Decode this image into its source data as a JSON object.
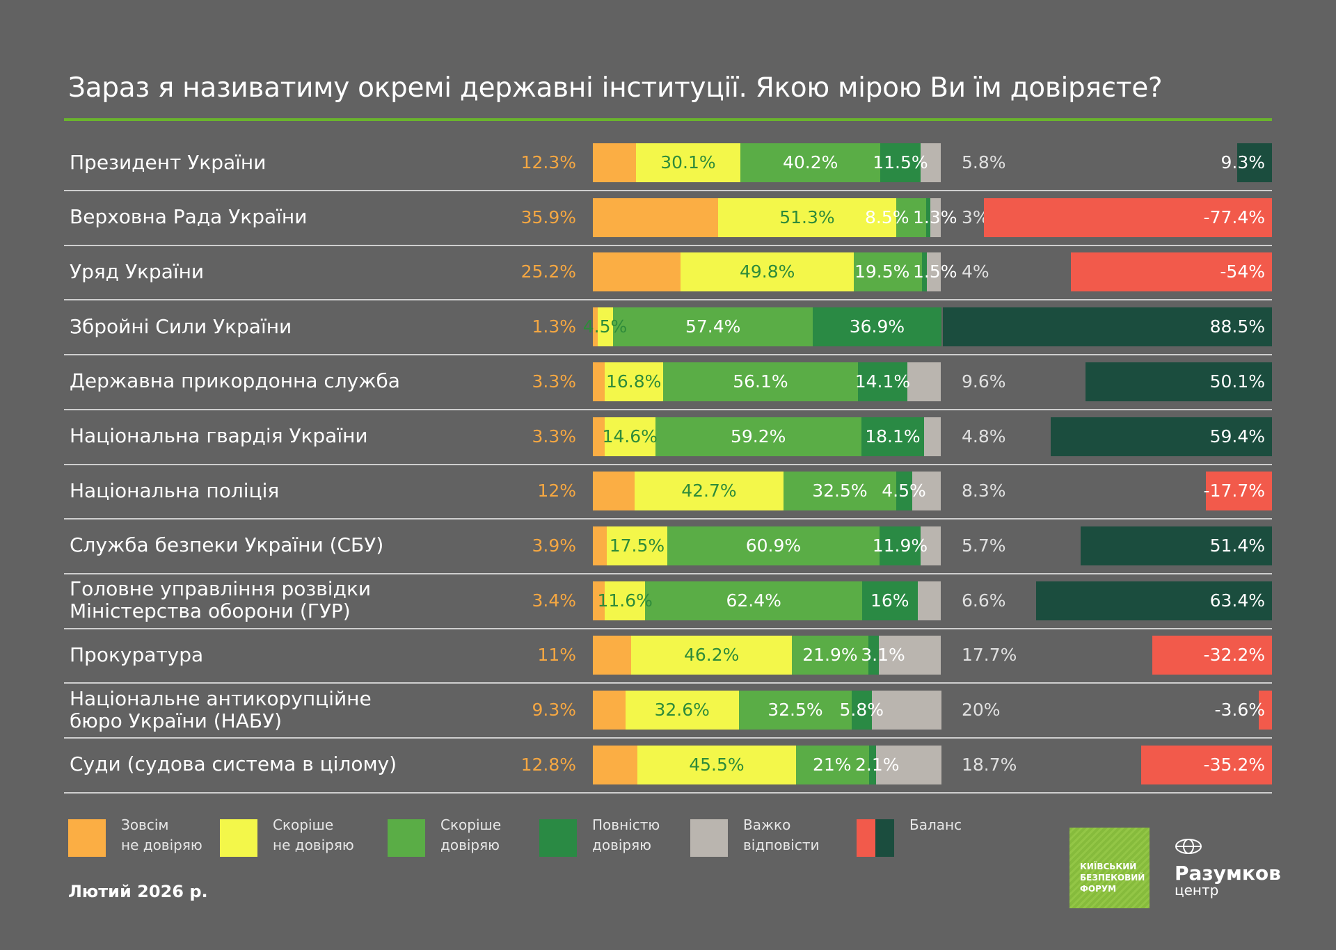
{
  "chart_data": {
    "type": "bar",
    "stacked": true,
    "title": "Зараз я називатиму окремі державні інституції. Якою мірою Ви їм довіряєте?",
    "legend": [
      "Зовсім\nне довіряю",
      "Скоріше\nне довіряю",
      "Скоріше\nдовіряю",
      "Повністю\nдовіряю",
      "Важко\nвідповісти",
      "Баланс"
    ],
    "colors": {
      "none": "#fbae44",
      "rather_not": "#f3f74a",
      "rather": "#5aad46",
      "full": "#2a8a44",
      "dk": "#bab5af",
      "balance_pos": "#1b4d3e",
      "balance_neg": "#f25a4b"
    },
    "rows": [
      {
        "label": "Президент України",
        "values": [
          12.3,
          30.1,
          40.2,
          11.5,
          5.8
        ],
        "balance": 9.3
      },
      {
        "label": "Верховна Рада України",
        "values": [
          35.9,
          51.3,
          8.5,
          1.3,
          3
        ],
        "balance": -77.4
      },
      {
        "label": "Уряд України",
        "values": [
          25.2,
          49.8,
          19.5,
          1.5,
          4
        ],
        "balance": -54
      },
      {
        "label": "Збройні Сили України",
        "values": [
          1.3,
          4.5,
          57.4,
          36.9,
          null
        ],
        "balance": 88.5
      },
      {
        "label": "Державна прикордонна служба",
        "values": [
          3.3,
          16.8,
          56.1,
          14.1,
          9.6
        ],
        "balance": 50.1
      },
      {
        "label": "Національна гвардія України",
        "values": [
          3.3,
          14.6,
          59.2,
          18.1,
          4.8
        ],
        "balance": 59.4
      },
      {
        "label": "Національна поліція",
        "values": [
          12,
          42.7,
          32.5,
          4.5,
          8.3
        ],
        "balance": -17.7
      },
      {
        "label": "Служба безпеки України (СБУ)",
        "values": [
          3.9,
          17.5,
          60.9,
          11.9,
          5.7
        ],
        "balance": 51.4
      },
      {
        "label": "Головне управління розвідки\nМіністерства оборони (ГУР)",
        "values": [
          3.4,
          11.6,
          62.4,
          16,
          6.6
        ],
        "balance": 63.4
      },
      {
        "label": "Прокуратура",
        "values": [
          11,
          46.2,
          21.9,
          3.1,
          17.7
        ],
        "balance": -32.2
      },
      {
        "label": "Національне антикорупційне\nбюро України (НАБУ)",
        "values": [
          9.3,
          32.6,
          32.5,
          5.8,
          20
        ],
        "balance": -3.6
      },
      {
        "label": "Суди (судова система в цілому)",
        "values": [
          12.8,
          45.5,
          21,
          2.1,
          18.7
        ],
        "balance": -35.2
      }
    ]
  },
  "footer": {
    "date": "Лютий 2026 р."
  },
  "logos": {
    "kbf": "КИЇВСЬКИЙ\nБЕЗПЕКОВИЙ\nФОРУМ",
    "razumkov_name": "Разумков",
    "razumkov_sub": "центр"
  }
}
